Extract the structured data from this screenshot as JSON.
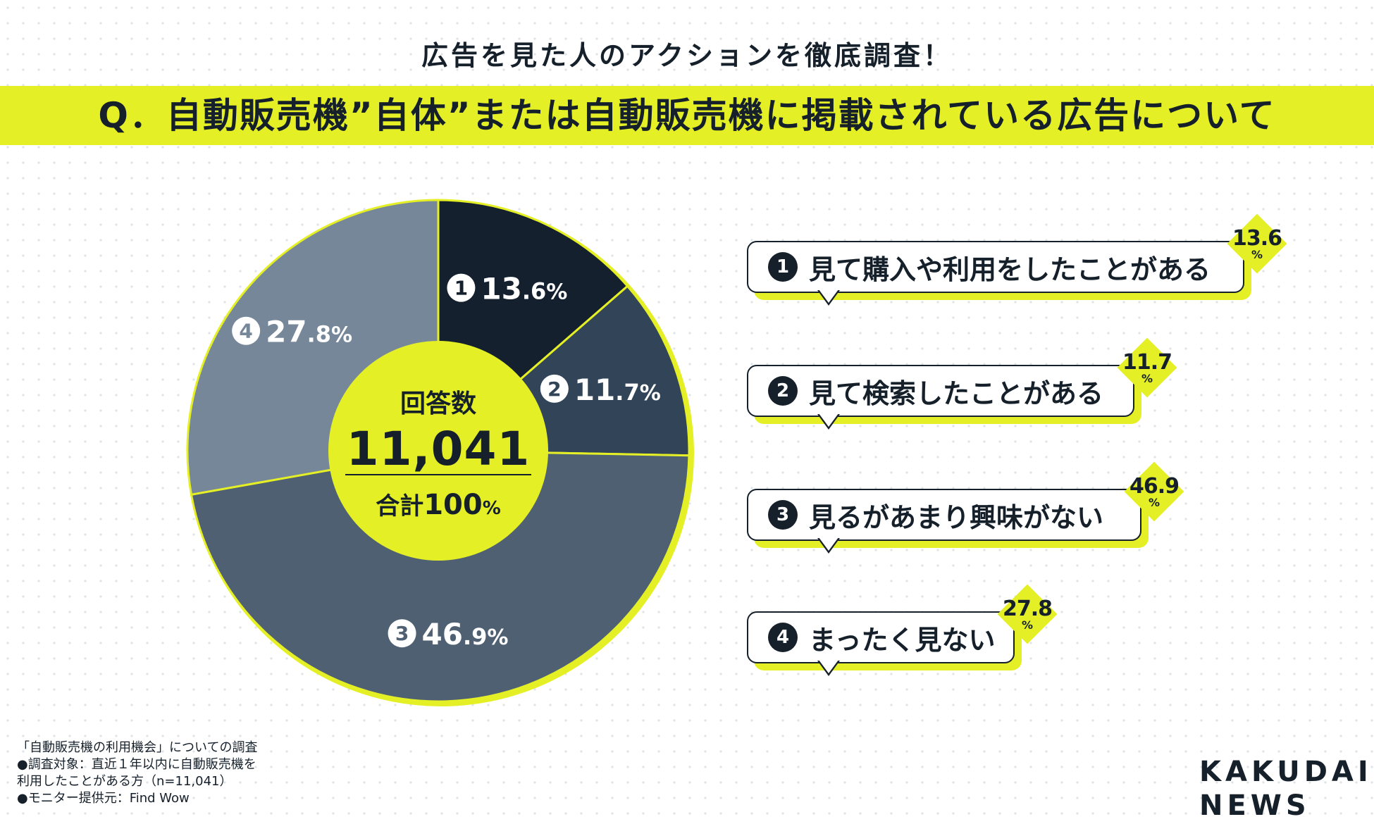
{
  "header": {
    "subtitle": "広告を見た人のアクションを徹底調査！",
    "title": "Q．自動販売機”自体”または自動販売機に掲載されている広告について"
  },
  "colors": {
    "accent": "#e4f025",
    "dark": "#15202b",
    "slice1": "#14202e",
    "slice2": "#324458",
    "slice3": "#4f6073",
    "slice4": "#76879a"
  },
  "chart_data": {
    "type": "pie",
    "title": "",
    "center": {
      "label": "回答数",
      "total": "11,041",
      "sum_label": "合計",
      "sum_value": "100",
      "sum_unit": "%"
    },
    "slices": [
      {
        "marker": "1",
        "label": "見て購入や利用をしたことがある",
        "value": 13.6,
        "int": "13",
        "dec": ".6",
        "unit": "%"
      },
      {
        "marker": "2",
        "label": "見て検索したことがある",
        "value": 11.7,
        "int": "11",
        "dec": ".7",
        "unit": "%"
      },
      {
        "marker": "3",
        "label": "見るがあまり興味がない",
        "value": 46.9,
        "int": "46",
        "dec": ".9",
        "unit": "%"
      },
      {
        "marker": "4",
        "label": "まったく見ない",
        "value": 27.8,
        "int": "27",
        "dec": ".8",
        "unit": "%"
      }
    ]
  },
  "notes": [
    "「自動販売機の利用機会」についての調査",
    "●調査対象：直近１年以内に自動販売機を",
    "利用したことがある方（n=11,041）",
    "●モニター提供元：Find Wow"
  ],
  "logo": {
    "line1": "KAKUDAI",
    "line2": "NEWS"
  }
}
